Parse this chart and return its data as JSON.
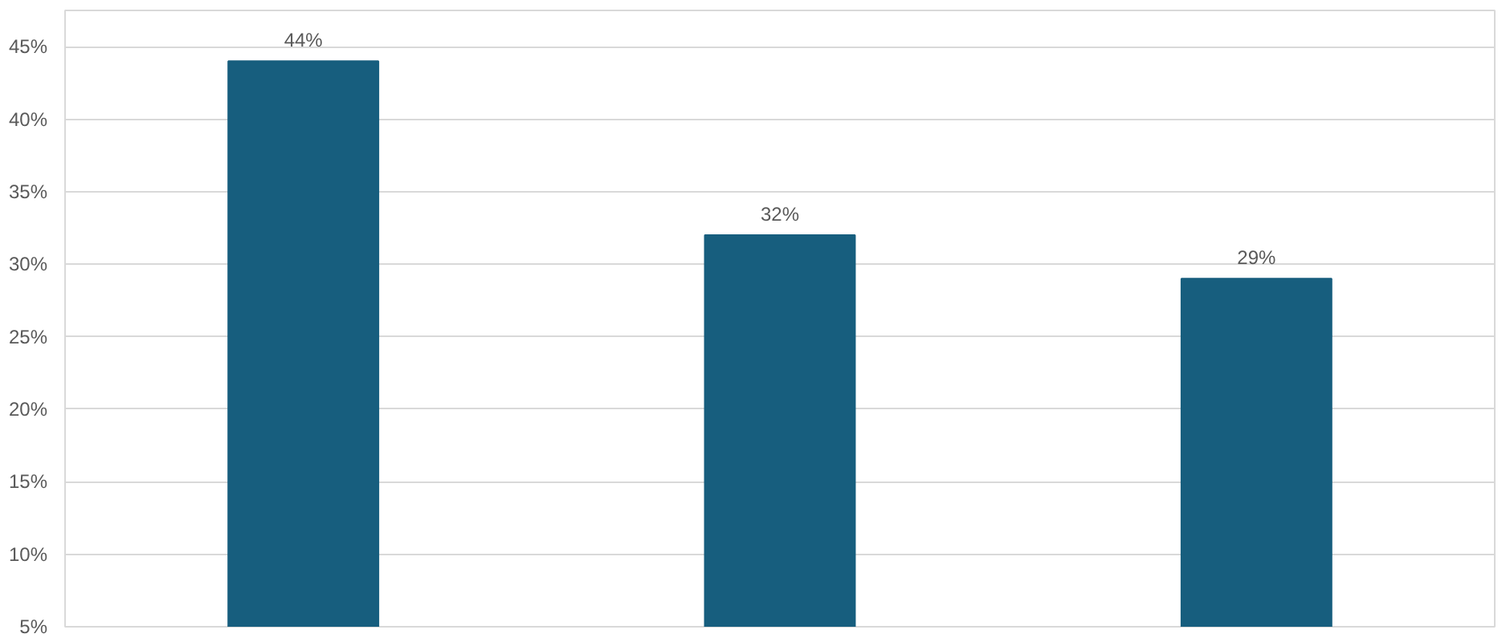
{
  "chart_data": {
    "type": "bar",
    "categories": [
      null,
      null,
      null
    ],
    "values": [
      44,
      32,
      29
    ],
    "value_labels": [
      "44%",
      "32%",
      "29%"
    ],
    "color": "#175e7e",
    "ylim": [
      5,
      47.5
    ],
    "yticks": [
      {
        "value": 5,
        "label": "5%"
      },
      {
        "value": 10,
        "label": "10%"
      },
      {
        "value": 15,
        "label": "15%"
      },
      {
        "value": 20,
        "label": "20%"
      },
      {
        "value": 25,
        "label": "25%"
      },
      {
        "value": 30,
        "label": "30%"
      },
      {
        "value": 35,
        "label": "35%"
      },
      {
        "value": 40,
        "label": "40%"
      },
      {
        "value": 45,
        "label": "45%"
      }
    ],
    "grid": "y",
    "tick_labels": "y"
  }
}
